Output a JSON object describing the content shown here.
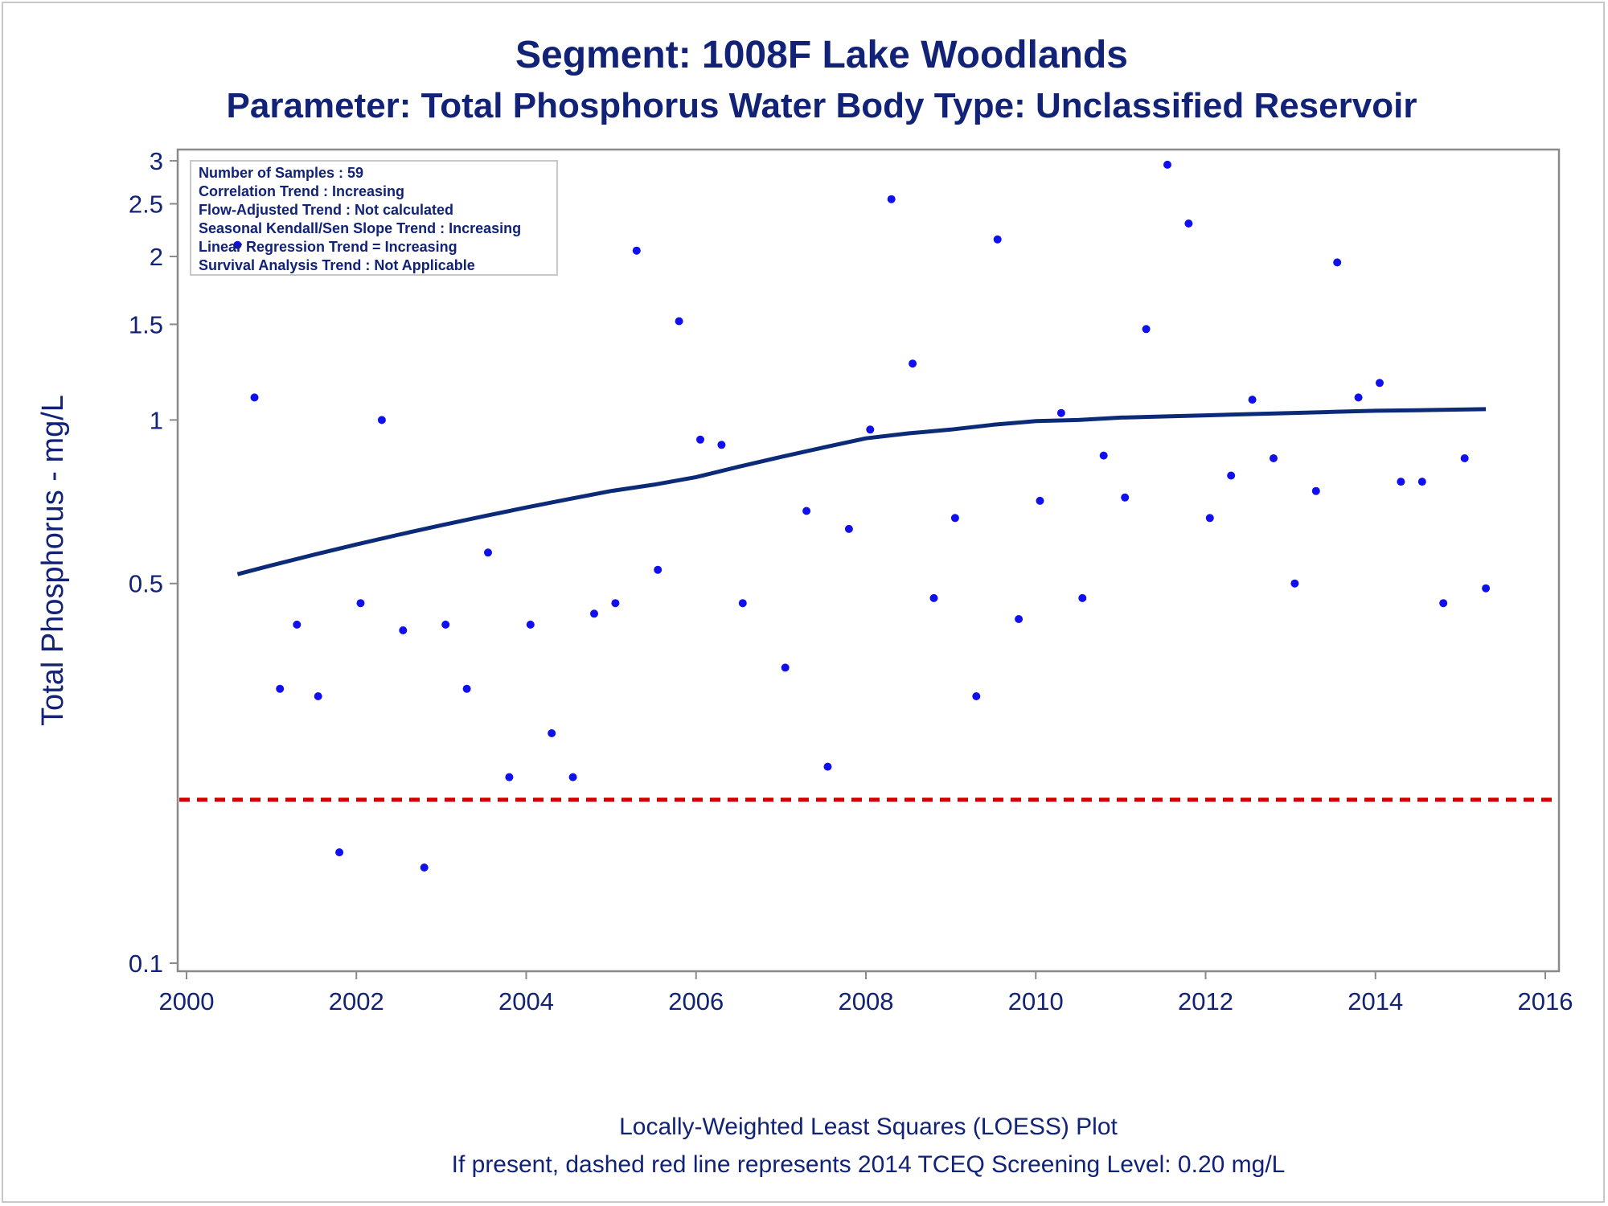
{
  "titles": {
    "line1": "Segment: 1008F  Lake Woodlands",
    "line2": "Parameter: Total Phosphorus   Water Body Type: Unclassified Reservoir"
  },
  "inset": {
    "lines": [
      "Number of Samples : 59",
      "Correlation Trend : Increasing",
      "Flow-Adjusted Trend : Not calculated",
      "Seasonal Kendall/Sen Slope Trend : Increasing",
      "Linear Regression Trend = Increasing",
      "Survival Analysis Trend : Not Applicable"
    ]
  },
  "footnotes": {
    "line1": "Locally-Weighted Least Squares (LOESS) Plot",
    "line2": "If present, dashed red line represents 2014 TCEQ Screening Level: 0.20 mg/L"
  },
  "colors": {
    "text": "#112277",
    "points": "#1010ee",
    "loess": "#0b2a78",
    "screening": "#d40000",
    "axis": "#8a8a8a"
  },
  "chart_data": {
    "type": "scatter",
    "ylabel": "Total Phosphorus - mg/L",
    "xlabel": "",
    "y_scale": "log",
    "xlim": [
      2000,
      2016
    ],
    "ylim": [
      0.095,
      3.2
    ],
    "x_ticks": [
      "2000",
      "2002",
      "2004",
      "2006",
      "2008",
      "2010",
      "2012",
      "2014",
      "2016"
    ],
    "y_ticks": [
      "0.1",
      "0.5",
      "1",
      "1.5",
      "2",
      "2.5",
      "3"
    ],
    "screening_level": 0.2,
    "series": [
      {
        "kind": "points",
        "x": [
          2000.6,
          2000.8,
          2001.1,
          2001.3,
          2001.55,
          2001.8,
          2002.05,
          2002.3,
          2002.55,
          2002.8,
          2003.05,
          2003.3,
          2003.55,
          2003.8,
          2004.05,
          2004.3,
          2004.55,
          2004.8,
          2005.05,
          2005.3,
          2005.55,
          2005.8,
          2006.05,
          2006.3,
          2006.55,
          2007.05,
          2007.3,
          2007.55,
          2007.8,
          2008.05,
          2008.3,
          2008.55,
          2008.8,
          2009.05,
          2009.3,
          2009.55,
          2009.8,
          2010.05,
          2010.3,
          2010.55,
          2010.8,
          2011.05,
          2011.3,
          2011.55,
          2011.8,
          2012.05,
          2012.3,
          2012.55,
          2012.8,
          2013.05,
          2013.3,
          2013.55,
          2013.8,
          2014.05,
          2014.3,
          2014.55,
          2014.8,
          2015.05,
          2015.3
        ],
        "y": [
          2.1,
          1.1,
          0.32,
          0.42,
          0.31,
          0.16,
          0.46,
          1.0,
          0.41,
          0.15,
          0.42,
          0.32,
          0.57,
          0.22,
          0.42,
          0.265,
          0.22,
          0.44,
          0.46,
          2.05,
          0.53,
          1.52,
          0.92,
          0.9,
          0.46,
          0.35,
          0.68,
          0.23,
          0.63,
          0.96,
          2.55,
          1.27,
          0.47,
          0.66,
          0.31,
          2.15,
          0.43,
          0.71,
          1.03,
          0.47,
          0.86,
          0.72,
          1.47,
          2.95,
          2.3,
          0.66,
          0.79,
          1.09,
          0.85,
          0.5,
          0.74,
          1.95,
          1.1,
          1.17,
          0.77,
          0.77,
          0.46,
          0.85,
          0.49
        ]
      },
      {
        "kind": "loess",
        "x": [
          2000.6,
          2001.0,
          2001.5,
          2002.0,
          2002.5,
          2003.0,
          2003.5,
          2004.0,
          2004.5,
          2005.0,
          2005.5,
          2006.0,
          2006.5,
          2007.0,
          2007.5,
          2008.0,
          2008.5,
          2009.0,
          2009.5,
          2010.0,
          2010.5,
          2011.0,
          2011.5,
          2012.0,
          2012.5,
          2013.0,
          2013.5,
          2014.0,
          2014.5,
          2015.0,
          2015.3
        ],
        "y": [
          0.52,
          0.54,
          0.565,
          0.59,
          0.615,
          0.64,
          0.665,
          0.69,
          0.715,
          0.74,
          0.76,
          0.785,
          0.82,
          0.855,
          0.89,
          0.925,
          0.945,
          0.96,
          0.98,
          0.995,
          1.0,
          1.01,
          1.015,
          1.02,
          1.025,
          1.03,
          1.035,
          1.04,
          1.042,
          1.045,
          1.047
        ]
      }
    ]
  }
}
